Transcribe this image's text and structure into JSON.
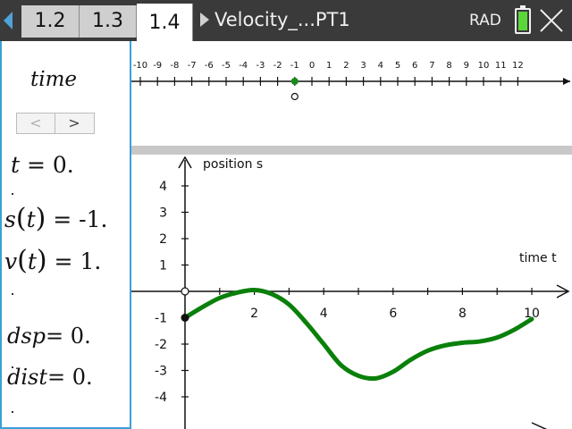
{
  "topbar": {
    "tabs": [
      {
        "label": "1.2",
        "active": false
      },
      {
        "label": "1.3",
        "active": false
      },
      {
        "label": "1.4",
        "active": true
      }
    ],
    "doc_title": "Velocity_...PT1",
    "mode": "RAD",
    "battery_color": "#5ad63a"
  },
  "left_panel": {
    "slider_label": "time",
    "t_value": "0.",
    "s_value": "-1.",
    "v_value": "1.",
    "dsp_value": "0.",
    "dist_value": "0."
  },
  "number_line": {
    "tick_labels": [
      "-10",
      "-9",
      "-8",
      "-7",
      "-6",
      "-5",
      "-4",
      "-3",
      "-2",
      "-1",
      "0",
      "1",
      "2",
      "3",
      "4",
      "5",
      "6",
      "7",
      "8",
      "9",
      "10",
      "11",
      "12"
    ],
    "point_value": -1,
    "point_color": "#1a8a1a"
  },
  "graph": {
    "ylabel": "position s",
    "xlabel": "time t",
    "x_ticks": [
      "2",
      "4",
      "6",
      "8",
      "10"
    ],
    "y_ticks": [
      "4",
      "3",
      "2",
      "1",
      "-1",
      "-2",
      "-3",
      "-4"
    ],
    "curve_color": "#0a800a"
  },
  "chart_data": {
    "type": "line",
    "title": "",
    "xlabel": "time t",
    "ylabel": "position s",
    "xlim": [
      0,
      10
    ],
    "ylim": [
      -4.5,
      4.5
    ],
    "series": [
      {
        "x": [
          0,
          0.5,
          1,
          1.5,
          2,
          2.5,
          3,
          3.5,
          4,
          4.5,
          5,
          5.5,
          6,
          6.5,
          7,
          7.5,
          8,
          8.5,
          9,
          9.5,
          10
        ],
        "y": [
          -1.0,
          -0.6,
          -0.25,
          -0.05,
          0.05,
          -0.1,
          -0.5,
          -1.2,
          -2.0,
          -2.8,
          -3.2,
          -3.3,
          -3.05,
          -2.6,
          -2.25,
          -2.05,
          -1.95,
          -1.9,
          -1.75,
          -1.45,
          -1.05
        ]
      }
    ],
    "marked_point": {
      "x": 0,
      "y": -1
    }
  }
}
